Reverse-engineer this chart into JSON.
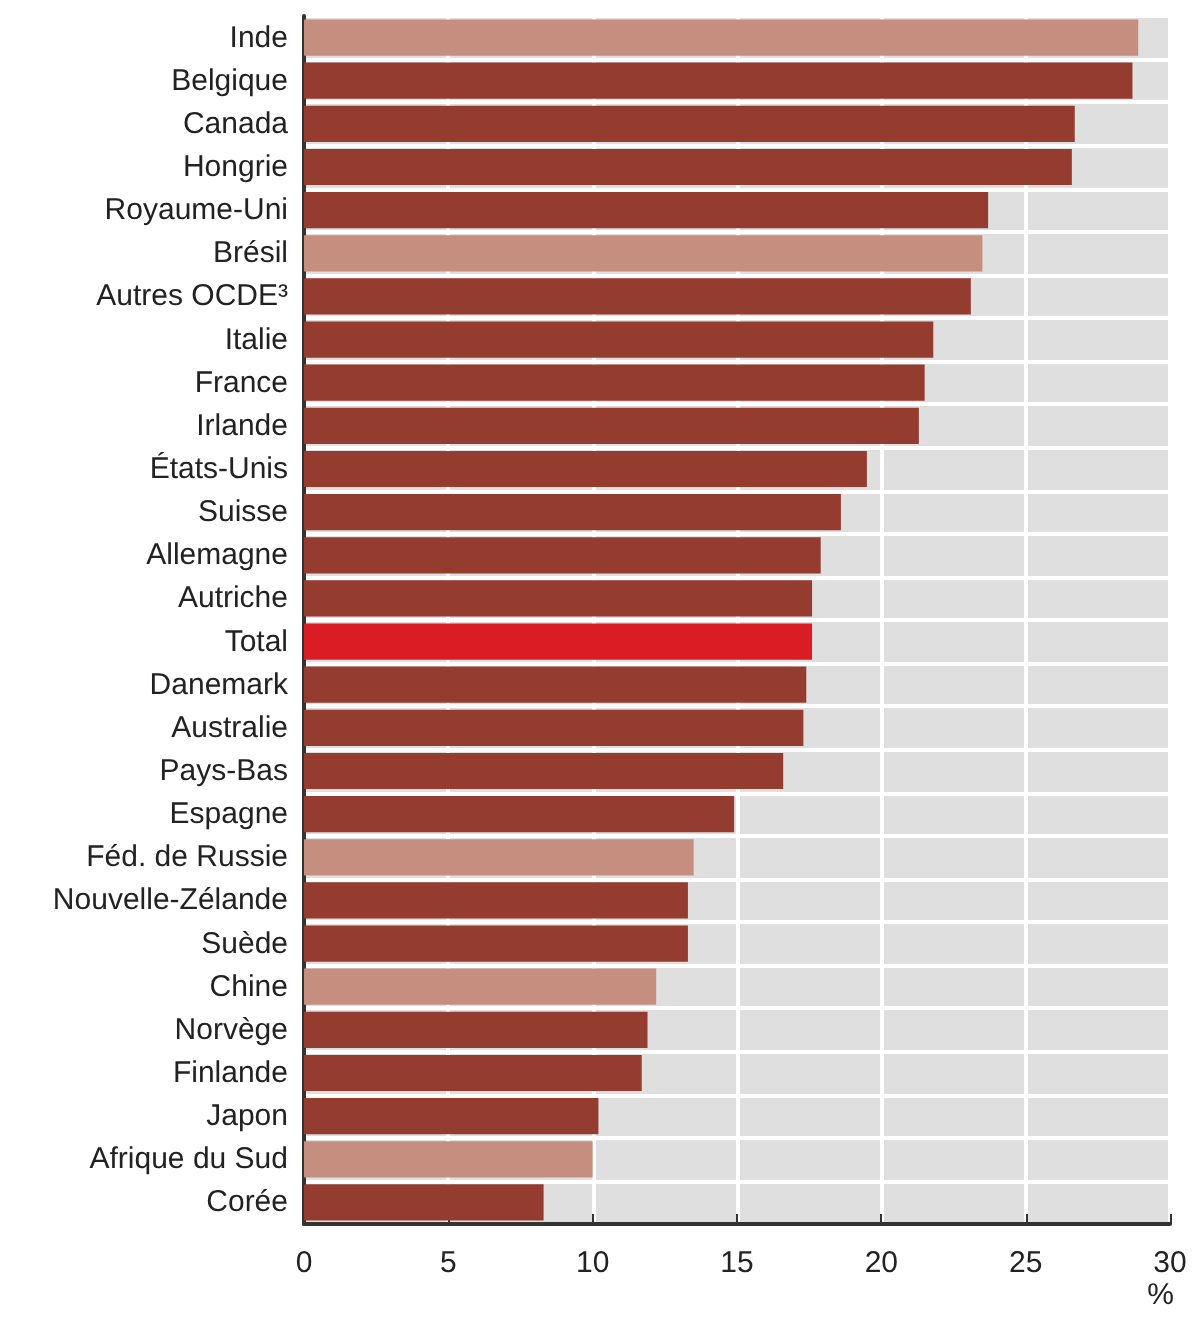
{
  "chart_data": {
    "type": "bar",
    "orientation": "horizontal",
    "xlabel": "%",
    "categories": [
      "Inde",
      "Belgique",
      "Canada",
      "Hongrie",
      "Royaume-Uni",
      "Brésil",
      "Autres OCDE³",
      "Italie",
      "France",
      "Irlande",
      "États-Unis",
      "Suisse",
      "Allemagne",
      "Autriche",
      "Total",
      "Danemark",
      "Australie",
      "Pays-Bas",
      "Espagne",
      "Féd. de Russie",
      "Nouvelle-Zélande",
      "Suède",
      "Chine",
      "Norvège",
      "Finlande",
      "Japon",
      "Afrique du Sud",
      "Corée"
    ],
    "values": [
      28.9,
      28.7,
      26.7,
      26.6,
      23.7,
      23.5,
      23.1,
      21.8,
      21.5,
      21.3,
      19.5,
      18.6,
      17.9,
      17.6,
      17.6,
      17.4,
      17.3,
      16.6,
      14.9,
      13.5,
      13.3,
      13.3,
      12.2,
      11.9,
      11.7,
      10.2,
      10.0,
      8.3
    ],
    "colors": [
      "#c68e7e",
      "#933c2f",
      "#933c2f",
      "#933c2f",
      "#933c2f",
      "#c68e7e",
      "#933c2f",
      "#933c2f",
      "#933c2f",
      "#933c2f",
      "#933c2f",
      "#933c2f",
      "#933c2f",
      "#933c2f",
      "#da1c24",
      "#933c2f",
      "#933c2f",
      "#933c2f",
      "#933c2f",
      "#c68e7e",
      "#933c2f",
      "#933c2f",
      "#c68e7e",
      "#933c2f",
      "#933c2f",
      "#933c2f",
      "#c68e7e",
      "#933c2f"
    ],
    "xlim": [
      0,
      30
    ],
    "xticks": [
      0,
      5,
      10,
      15,
      20,
      25,
      30
    ],
    "grid": true
  }
}
